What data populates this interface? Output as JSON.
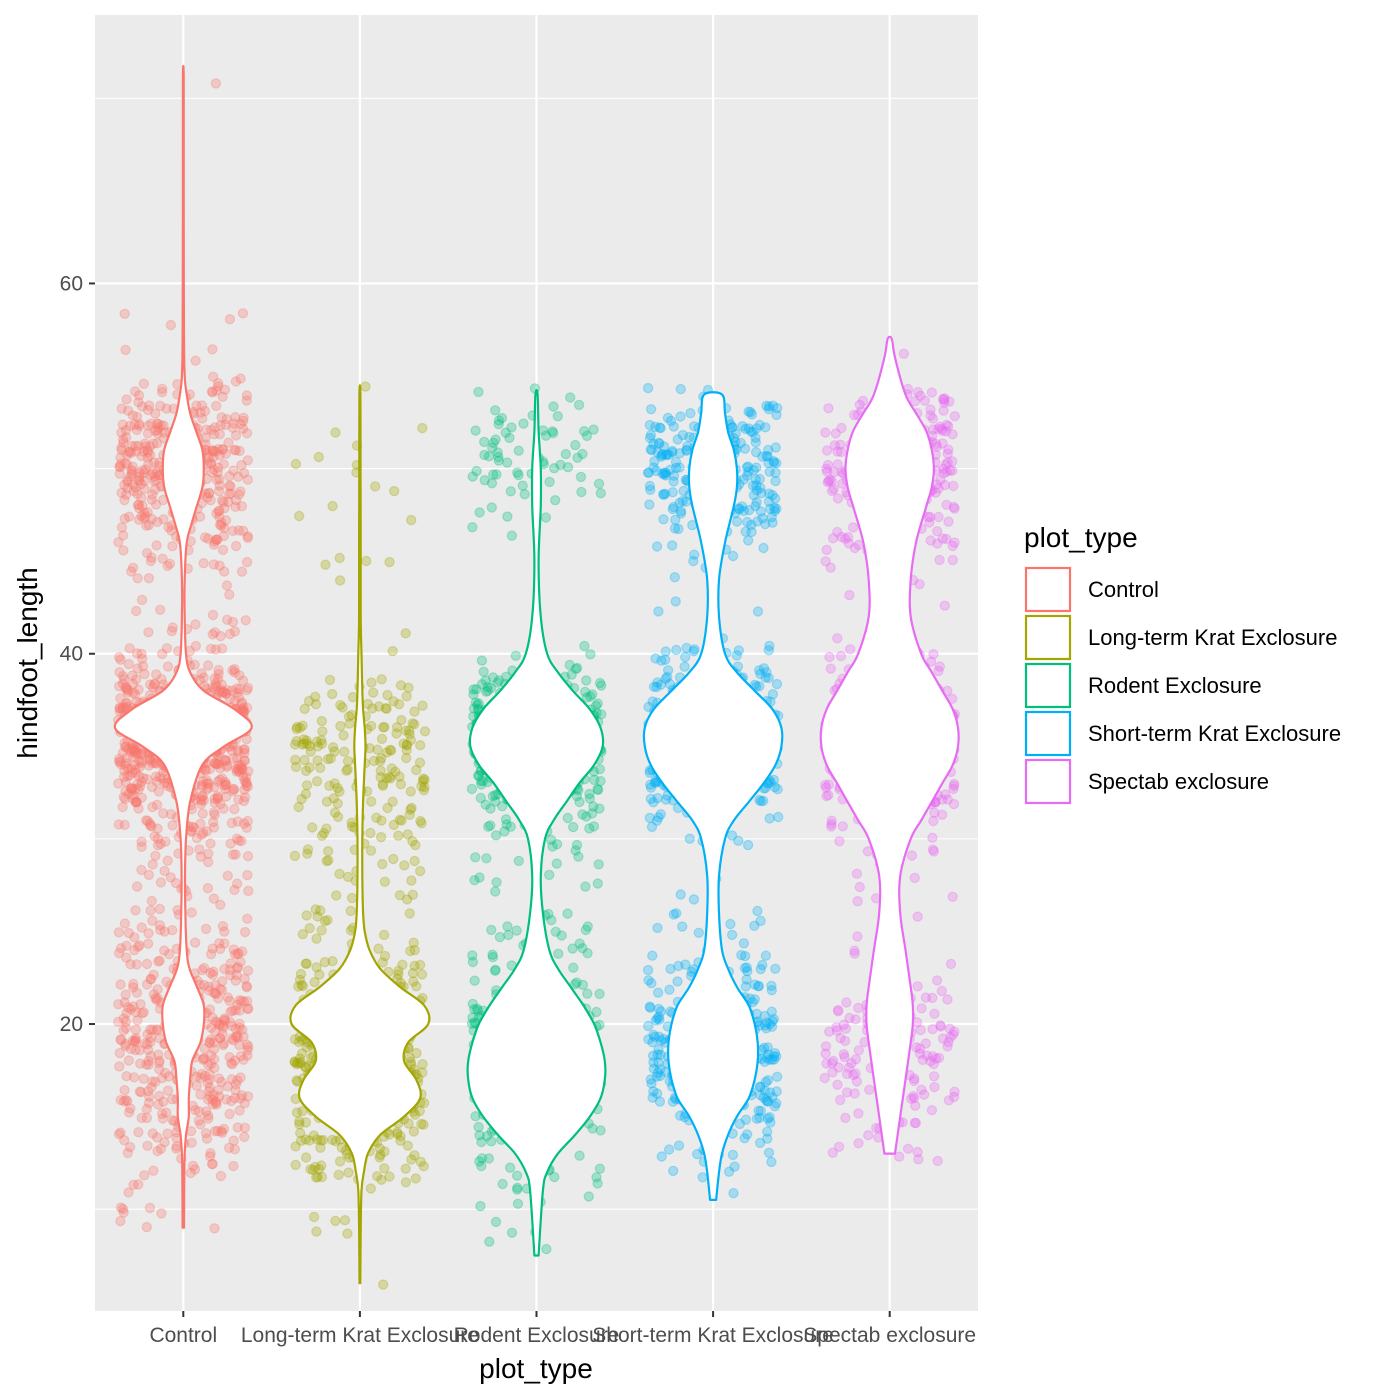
{
  "chart_data": {
    "type": "violin",
    "title": "",
    "xlabel": "plot_type",
    "ylabel": "hindfoot_length",
    "ylim": [
      4.5,
      74.5
    ],
    "y_ticks": [
      20,
      40,
      60
    ],
    "y_tick_labels": [
      "20",
      "40",
      "60"
    ],
    "grid": true,
    "legend": {
      "title": "plot_type",
      "placement": "right"
    },
    "point_alpha": 0.3,
    "categories": [
      "Control",
      "Long-term Krat Exclosure",
      "Rodent Exclosure",
      "Short-term Krat Exclosure",
      "Spectab exclosure"
    ],
    "series": [
      {
        "name": "Control",
        "color": "#F8766D",
        "violin_range": [
          9,
          71
        ],
        "violin_density": [
          [
            9,
            0.01
          ],
          [
            12,
            0.015
          ],
          [
            13,
            0.02
          ],
          [
            14,
            0.04
          ],
          [
            15,
            0.08
          ],
          [
            16,
            0.08
          ],
          [
            17,
            0.1
          ],
          [
            18,
            0.13
          ],
          [
            19,
            0.25
          ],
          [
            20,
            0.3
          ],
          [
            21,
            0.3
          ],
          [
            22,
            0.2
          ],
          [
            23,
            0.09
          ],
          [
            24,
            0.05
          ],
          [
            26,
            0.03
          ],
          [
            28,
            0.025
          ],
          [
            30,
            0.04
          ],
          [
            32,
            0.1
          ],
          [
            34,
            0.28
          ],
          [
            35,
            0.6
          ],
          [
            36,
            1.0
          ],
          [
            37,
            0.75
          ],
          [
            38,
            0.3
          ],
          [
            39,
            0.1
          ],
          [
            40,
            0.04
          ],
          [
            42,
            0.02
          ],
          [
            44,
            0.02
          ],
          [
            46,
            0.05
          ],
          [
            47,
            0.12
          ],
          [
            48,
            0.2
          ],
          [
            49,
            0.28
          ],
          [
            50,
            0.3
          ],
          [
            51,
            0.28
          ],
          [
            52,
            0.19
          ],
          [
            53,
            0.1
          ],
          [
            54,
            0.05
          ],
          [
            55,
            0.02
          ],
          [
            57,
            0.01
          ],
          [
            60,
            0.008
          ],
          [
            65,
            0.006
          ],
          [
            71,
            0.006
          ]
        ],
        "point_clusters": [
          [
            19,
            3.5,
            420
          ],
          [
            35.5,
            2.3,
            700
          ],
          [
            50,
            2.5,
            380
          ],
          [
            29,
            3,
            60
          ],
          [
            43,
            2,
            10
          ],
          [
            11,
            1.5,
            8
          ],
          [
            57,
            1,
            3
          ],
          [
            70.5,
            0.2,
            1
          ]
        ]
      },
      {
        "name": "Long-term Krat Exclosure",
        "color": "#A3A500",
        "violin_range": [
          6,
          54
        ],
        "violin_density": [
          [
            6,
            0.005
          ],
          [
            9,
            0.01
          ],
          [
            11,
            0.02
          ],
          [
            12,
            0.05
          ],
          [
            13,
            0.1
          ],
          [
            14,
            0.25
          ],
          [
            15,
            0.55
          ],
          [
            16,
            0.75
          ],
          [
            17,
            0.7
          ],
          [
            18,
            0.55
          ],
          [
            19,
            0.6
          ],
          [
            20,
            0.85
          ],
          [
            21,
            0.8
          ],
          [
            22,
            0.5
          ],
          [
            23,
            0.25
          ],
          [
            24,
            0.12
          ],
          [
            25,
            0.06
          ],
          [
            26,
            0.04
          ],
          [
            28,
            0.03
          ],
          [
            30,
            0.03
          ],
          [
            32,
            0.04
          ],
          [
            34,
            0.06
          ],
          [
            35,
            0.07
          ],
          [
            36,
            0.06
          ],
          [
            37,
            0.04
          ],
          [
            38,
            0.03
          ],
          [
            40,
            0.02
          ],
          [
            42,
            0.01
          ],
          [
            46,
            0.01
          ],
          [
            50,
            0.008
          ],
          [
            54,
            0.006
          ]
        ],
        "point_clusters": [
          [
            18,
            3,
            480
          ],
          [
            34.5,
            2.5,
            170
          ],
          [
            28,
            3,
            40
          ],
          [
            49,
            3,
            18
          ],
          [
            11,
            1.2,
            12
          ],
          [
            6.5,
            0.3,
            1
          ]
        ]
      },
      {
        "name": "Rodent Exclosure",
        "color": "#00BF7D",
        "violin_range": [
          7.5,
          54
        ],
        "violin_density": [
          [
            7.5,
            0.01
          ],
          [
            11,
            0.03
          ],
          [
            12,
            0.05
          ],
          [
            13,
            0.1
          ],
          [
            14,
            0.18
          ],
          [
            15,
            0.25
          ],
          [
            16,
            0.3
          ],
          [
            17,
            0.32
          ],
          [
            18,
            0.32
          ],
          [
            19,
            0.3
          ],
          [
            20,
            0.27
          ],
          [
            21,
            0.22
          ],
          [
            22,
            0.16
          ],
          [
            23,
            0.1
          ],
          [
            24,
            0.06
          ],
          [
            26,
            0.03
          ],
          [
            28,
            0.02
          ],
          [
            30,
            0.04
          ],
          [
            31,
            0.08
          ],
          [
            32,
            0.14
          ],
          [
            33,
            0.2
          ],
          [
            34,
            0.27
          ],
          [
            35,
            0.31
          ],
          [
            36,
            0.3
          ],
          [
            37,
            0.25
          ],
          [
            38,
            0.17
          ],
          [
            39,
            0.1
          ],
          [
            40,
            0.05
          ],
          [
            42,
            0.02
          ],
          [
            45,
            0.01
          ],
          [
            48,
            0.02
          ],
          [
            50,
            0.02
          ],
          [
            52,
            0.01
          ],
          [
            54,
            0.005
          ]
        ],
        "point_clusters": [
          [
            18,
            3,
            420
          ],
          [
            35,
            2.3,
            420
          ],
          [
            50.5,
            2,
            70
          ],
          [
            26,
            2,
            15
          ],
          [
            12,
            1.5,
            8
          ],
          [
            7.7,
            0.2,
            1
          ]
        ]
      },
      {
        "name": "Short-term Krat Exclosure",
        "color": "#00B0F6",
        "violin_range": [
          10.5,
          54
        ],
        "violin_density": [
          [
            10.5,
            0.01
          ],
          [
            12,
            0.02
          ],
          [
            13,
            0.03
          ],
          [
            14,
            0.05
          ],
          [
            15,
            0.08
          ],
          [
            16,
            0.12
          ],
          [
            17,
            0.14
          ],
          [
            18,
            0.15
          ],
          [
            19,
            0.15
          ],
          [
            20,
            0.14
          ],
          [
            21,
            0.12
          ],
          [
            22,
            0.08
          ],
          [
            23,
            0.05
          ],
          [
            24,
            0.03
          ],
          [
            26,
            0.02
          ],
          [
            28,
            0.02
          ],
          [
            30,
            0.04
          ],
          [
            31,
            0.07
          ],
          [
            32,
            0.12
          ],
          [
            33,
            0.17
          ],
          [
            34,
            0.21
          ],
          [
            35,
            0.23
          ],
          [
            36,
            0.23
          ],
          [
            37,
            0.2
          ],
          [
            38,
            0.14
          ],
          [
            39,
            0.08
          ],
          [
            40,
            0.04
          ],
          [
            42,
            0.02
          ],
          [
            44,
            0.02
          ],
          [
            46,
            0.04
          ],
          [
            48,
            0.07
          ],
          [
            49,
            0.08
          ],
          [
            50,
            0.08
          ],
          [
            51,
            0.07
          ],
          [
            52,
            0.05
          ],
          [
            53,
            0.04
          ],
          [
            54,
            0.03
          ]
        ],
        "point_clusters": [
          [
            18.5,
            2.5,
            320
          ],
          [
            35.5,
            2.2,
            420
          ],
          [
            50,
            2,
            250
          ],
          [
            24.5,
            1.5,
            18
          ],
          [
            13.5,
            1,
            8
          ],
          [
            10.8,
            0.2,
            1
          ]
        ]
      },
      {
        "name": "Spectab exclosure",
        "color": "#E76BF3",
        "violin_range": [
          13,
          57
        ],
        "violin_density": [
          [
            13,
            0.005
          ],
          [
            15,
            0.01
          ],
          [
            17,
            0.015
          ],
          [
            19,
            0.02
          ],
          [
            20,
            0.022
          ],
          [
            21,
            0.022
          ],
          [
            22,
            0.02
          ],
          [
            24,
            0.015
          ],
          [
            26,
            0.01
          ],
          [
            28,
            0.01
          ],
          [
            30,
            0.02
          ],
          [
            31,
            0.03
          ],
          [
            32,
            0.04
          ],
          [
            33,
            0.05
          ],
          [
            34,
            0.06
          ],
          [
            35,
            0.065
          ],
          [
            36,
            0.065
          ],
          [
            37,
            0.06
          ],
          [
            38,
            0.05
          ],
          [
            39,
            0.04
          ],
          [
            40,
            0.03
          ],
          [
            42,
            0.02
          ],
          [
            44,
            0.02
          ],
          [
            46,
            0.025
          ],
          [
            48,
            0.035
          ],
          [
            49,
            0.04
          ],
          [
            50,
            0.042
          ],
          [
            51,
            0.04
          ],
          [
            52,
            0.035
          ],
          [
            53,
            0.025
          ],
          [
            54,
            0.015
          ],
          [
            56,
            0.005
          ],
          [
            57,
            0.002
          ]
        ],
        "point_clusters": [
          [
            18.5,
            2.5,
            150
          ],
          [
            35,
            2.2,
            330
          ],
          [
            50,
            2.2,
            260
          ],
          [
            28,
            2.5,
            15
          ],
          [
            40,
            1,
            3
          ],
          [
            14,
            1,
            3
          ],
          [
            56.5,
            0.3,
            1
          ]
        ]
      }
    ]
  }
}
